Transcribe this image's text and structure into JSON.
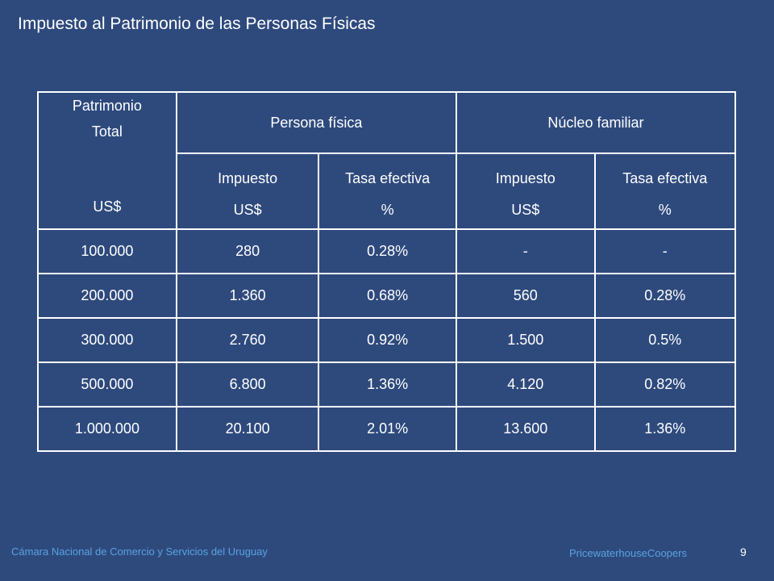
{
  "title": "Impuesto al Patrimonio de las Personas Físicas",
  "table": {
    "header": {
      "patrimonio_line1": "Patrimonio",
      "patrimonio_line2": "Total",
      "patrimonio_unit": "US$",
      "group_persona": "Persona física",
      "group_nucleo": "Núcleo familiar",
      "sub": [
        {
          "label": "Impuesto",
          "unit": "US$"
        },
        {
          "label": "Tasa efectiva",
          "unit": "%"
        },
        {
          "label": "Impuesto",
          "unit": "US$"
        },
        {
          "label": "Tasa efectiva",
          "unit": "%"
        }
      ]
    },
    "rows": [
      [
        "100.000",
        "280",
        "0.28%",
        "-",
        "-"
      ],
      [
        "200.000",
        "1.360",
        "0.68%",
        "560",
        "0.28%"
      ],
      [
        "300.000",
        "2.760",
        "0.92%",
        "1.500",
        "0.5%"
      ],
      [
        "500.000",
        "6.800",
        "1.36%",
        "4.120",
        "0.82%"
      ],
      [
        "1.000.000",
        "20.100",
        "2.01%",
        "13.600",
        "1.36%"
      ]
    ]
  },
  "footer": {
    "left": "Cámara Nacional de Comercio y Servicios del Uruguay",
    "right": "PricewaterhouseCoopers",
    "page": "9"
  },
  "colors": {
    "background": "#2e4a7d",
    "footer_text": "#5aa2e0",
    "text": "#ffffff"
  }
}
